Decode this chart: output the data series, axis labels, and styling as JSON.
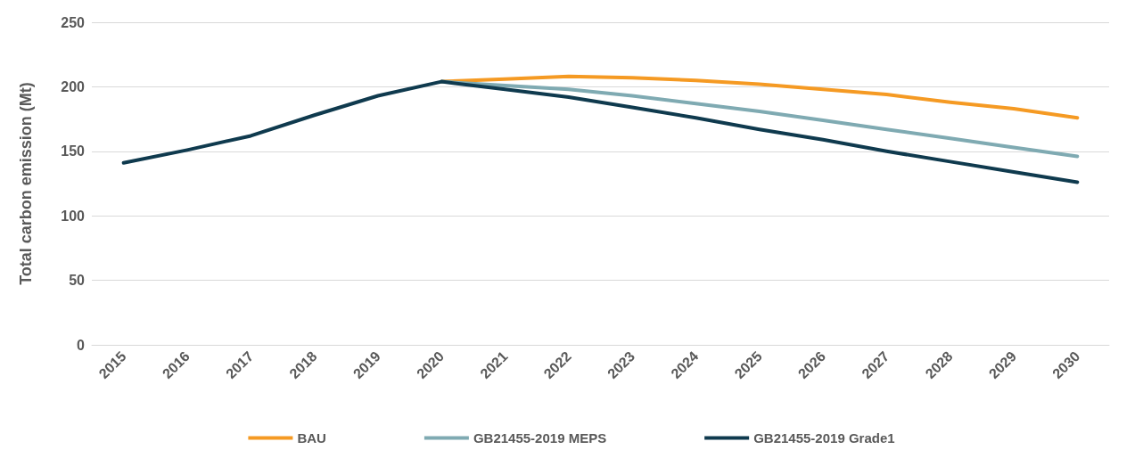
{
  "chart_data": {
    "type": "line",
    "ylabel": "Total carbon emission (Mt)",
    "categories": [
      "2015",
      "2016",
      "2017",
      "2018",
      "2019",
      "2020",
      "2021",
      "2022",
      "2023",
      "2024",
      "2025",
      "2026",
      "2027",
      "2028",
      "2029",
      "2030"
    ],
    "series": [
      {
        "name": "BAU",
        "color": "#f59a23",
        "values": [
          null,
          null,
          null,
          null,
          null,
          204,
          206,
          208,
          207,
          205,
          202,
          198,
          194,
          188,
          183,
          176
        ]
      },
      {
        "name": "GB21455-2019 MEPS",
        "color": "#7faab2",
        "values": [
          null,
          null,
          null,
          null,
          null,
          204,
          201,
          198,
          193,
          187,
          181,
          174,
          167,
          160,
          153,
          146
        ]
      },
      {
        "name": "GB21455-2019 Grade1",
        "color": "#0f3a4e",
        "values": [
          141,
          151,
          162,
          178,
          193,
          204,
          198,
          192,
          184,
          176,
          167,
          159,
          150,
          142,
          134,
          126
        ]
      }
    ],
    "ylim": [
      0,
      250
    ],
    "yticks": [
      0,
      50,
      100,
      150,
      200,
      250
    ],
    "grid": "y",
    "legend": "bottom",
    "marker": "none",
    "line_style": "solid"
  }
}
